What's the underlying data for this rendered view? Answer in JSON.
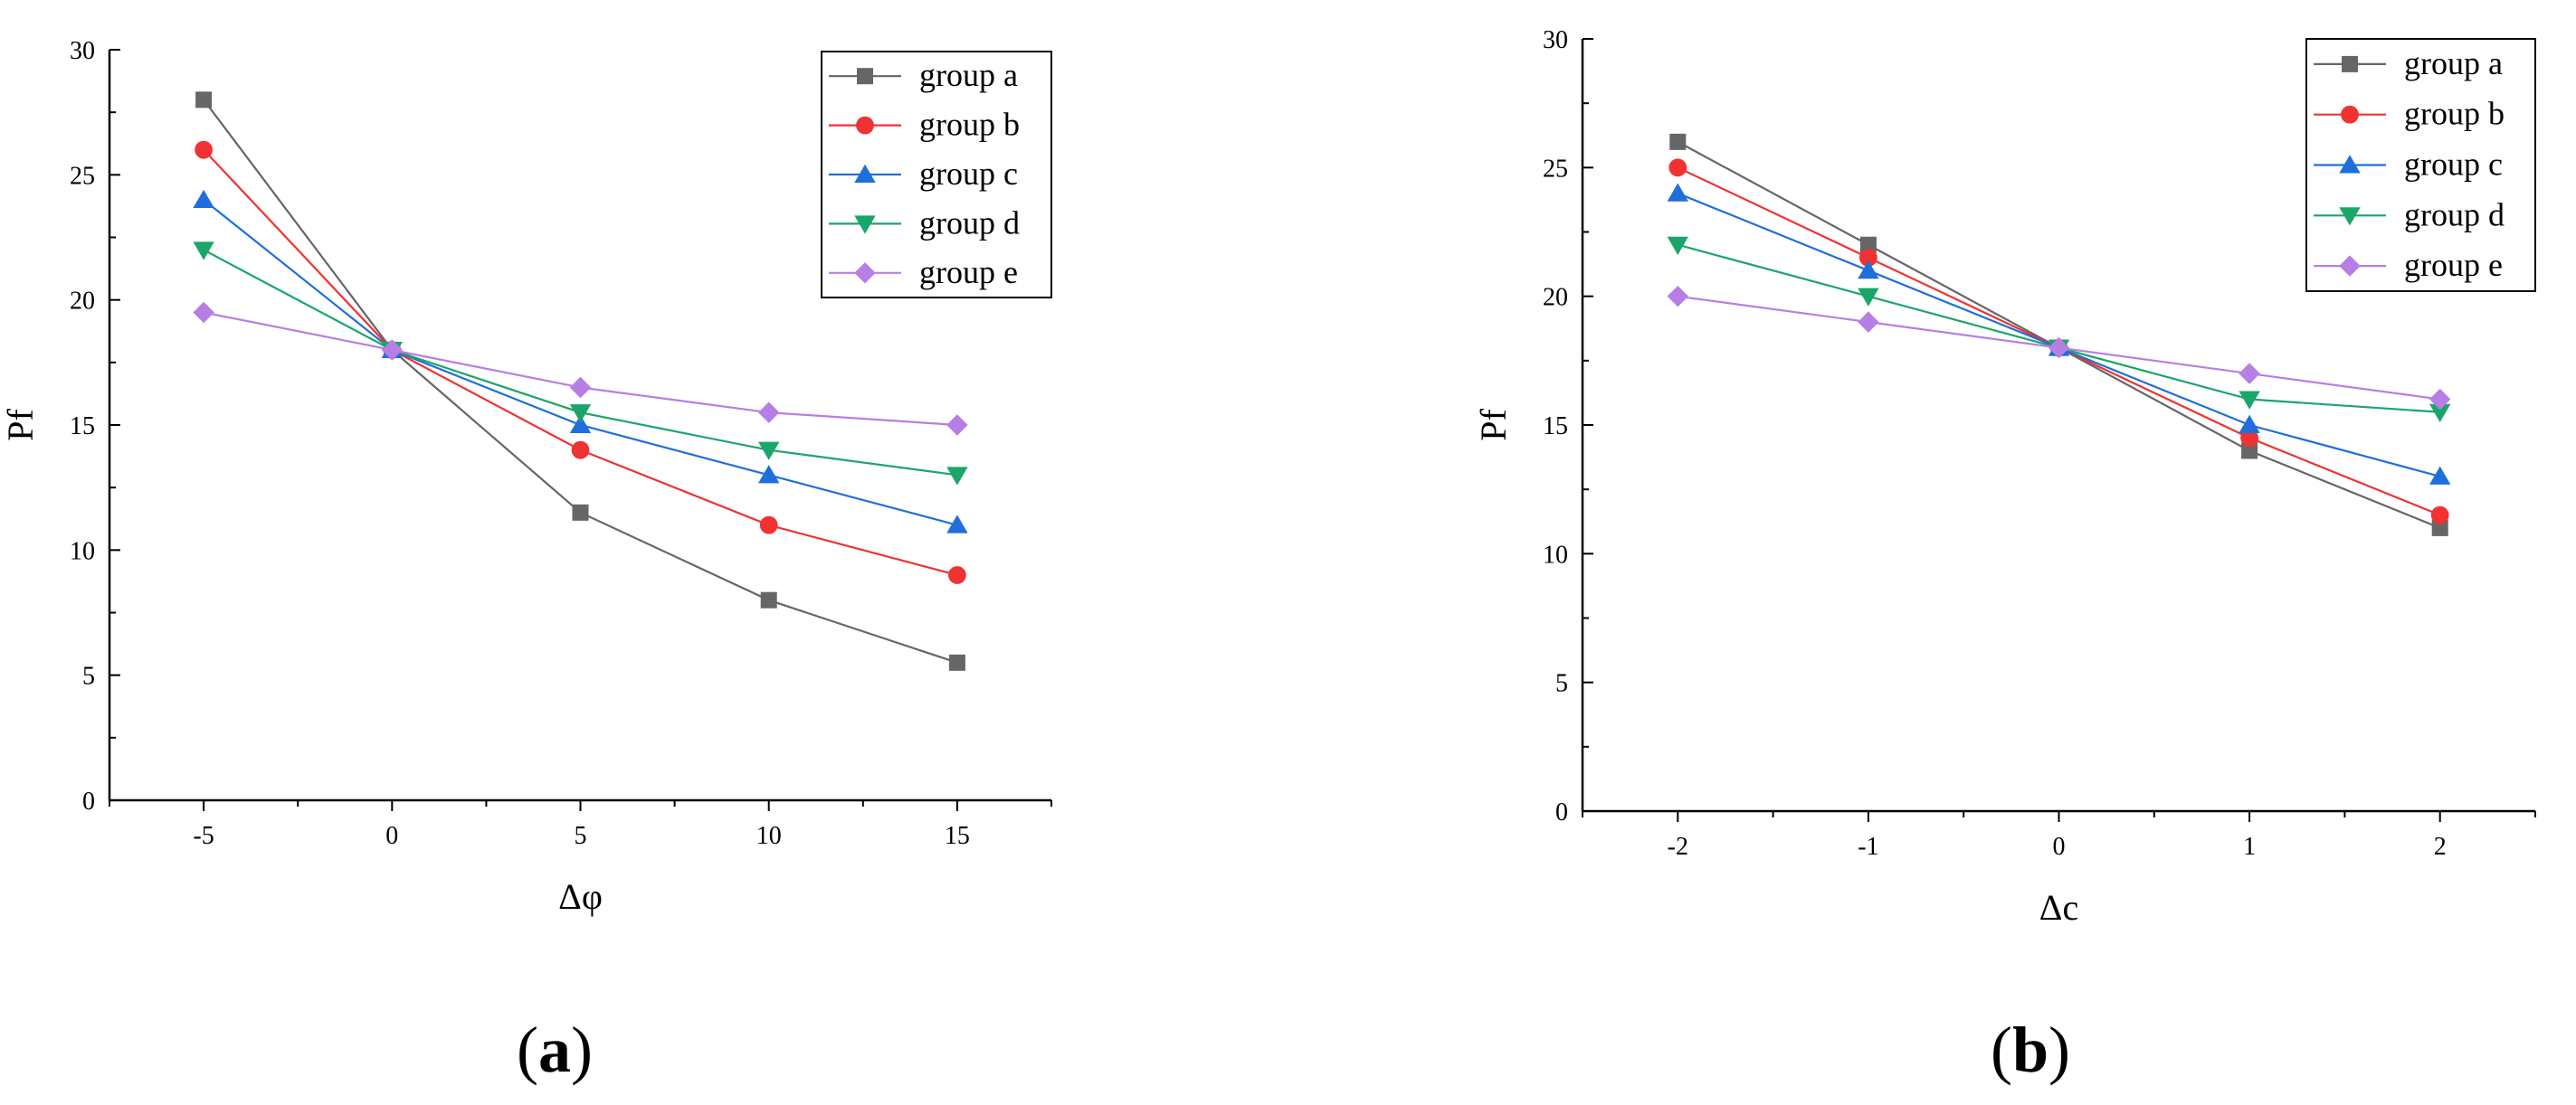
{
  "chart_data": [
    {
      "panel_label_open": "(",
      "panel_label_letter": "a",
      "panel_label_close": ")",
      "type": "line",
      "title": "",
      "xlabel": "Δφ",
      "ylabel": "Pf",
      "xlim": [
        -7.5,
        17.5
      ],
      "ylim": [
        0,
        30
      ],
      "x_ticks": [
        -5,
        0,
        5,
        10,
        15
      ],
      "x_tick_labels": [
        "-5",
        "0",
        "5",
        "10",
        "15"
      ],
      "y_ticks": [
        0,
        5,
        10,
        15,
        20,
        25,
        30
      ],
      "y_tick_labels": [
        "0",
        "5",
        "10",
        "15",
        "20",
        "25",
        "30"
      ],
      "x": [
        -5,
        0,
        5,
        10,
        15
      ],
      "legend_position": "top-right",
      "grid": false,
      "series": [
        {
          "name": "group a",
          "values": [
            28,
            18,
            11.5,
            8,
            5.5
          ],
          "color": "#666666",
          "marker": "square"
        },
        {
          "name": "group b",
          "values": [
            26,
            18,
            14,
            11,
            9
          ],
          "color": "#f03232",
          "marker": "circle"
        },
        {
          "name": "group c",
          "values": [
            24,
            18,
            15,
            13,
            11
          ],
          "color": "#1e6fdc",
          "marker": "triangle-up"
        },
        {
          "name": "group d",
          "values": [
            22,
            18,
            15.5,
            14,
            13
          ],
          "color": "#1aa56a",
          "marker": "triangle-down"
        },
        {
          "name": "group e",
          "values": [
            19.5,
            18,
            16.5,
            15.5,
            15
          ],
          "color": "#b77ee6",
          "marker": "diamond"
        }
      ]
    },
    {
      "panel_label_open": "(",
      "panel_label_letter": "b",
      "panel_label_close": ")",
      "type": "line",
      "title": "",
      "xlabel": "Δc",
      "ylabel": "Pf",
      "xlim": [
        -2.5,
        2.5
      ],
      "ylim": [
        0,
        30
      ],
      "x_ticks": [
        -2,
        -1,
        0,
        1,
        2
      ],
      "x_tick_labels": [
        "-2",
        "-1",
        "0",
        "1",
        "2"
      ],
      "y_ticks": [
        0,
        5,
        10,
        15,
        20,
        25,
        30
      ],
      "y_tick_labels": [
        "0",
        "5",
        "10",
        "15",
        "20",
        "25",
        "30"
      ],
      "x": [
        -2,
        -1,
        0,
        1,
        2
      ],
      "legend_position": "top-right",
      "grid": false,
      "series": [
        {
          "name": "group a",
          "values": [
            26,
            22,
            18,
            14,
            11
          ],
          "color": "#666666",
          "marker": "square"
        },
        {
          "name": "group b",
          "values": [
            25,
            21.5,
            18,
            14.5,
            11.5
          ],
          "color": "#f03232",
          "marker": "circle"
        },
        {
          "name": "group c",
          "values": [
            24,
            21,
            18,
            15,
            13
          ],
          "color": "#1e6fdc",
          "marker": "triangle-up"
        },
        {
          "name": "group d",
          "values": [
            22,
            20,
            18,
            16,
            15.5
          ],
          "color": "#1aa56a",
          "marker": "triangle-down"
        },
        {
          "name": "group e",
          "values": [
            20,
            19,
            18,
            17,
            16
          ],
          "color": "#b77ee6",
          "marker": "diamond"
        }
      ]
    }
  ]
}
